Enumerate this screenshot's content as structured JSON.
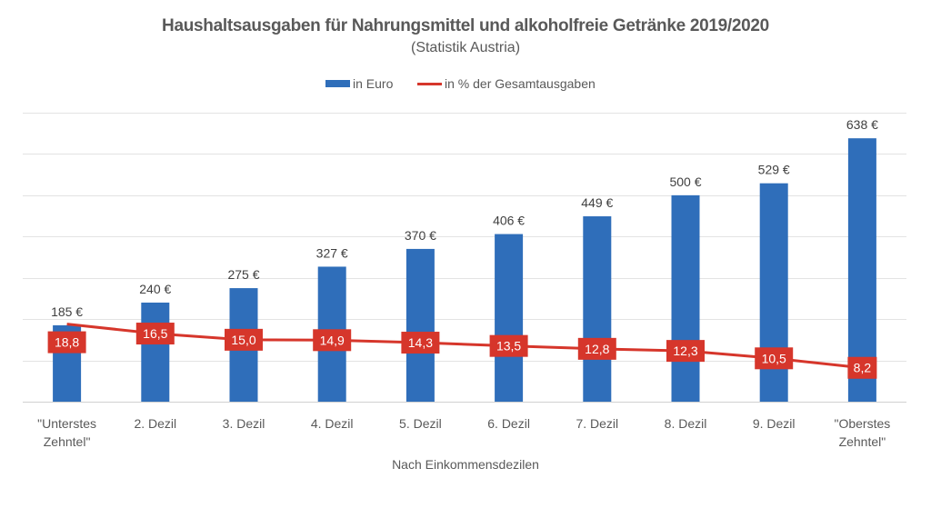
{
  "chart_data": {
    "type": "bar",
    "title": "Haushaltsausgaben für Nahrungsmittel und alkoholfreie Getränke 2019/2020",
    "subtitle": "(Statistik Austria)",
    "xlabel": "Nach Einkommensdezilen",
    "ylabel": "",
    "categories": [
      [
        "\"Unterstes",
        "Zehntel\""
      ],
      [
        "2. Dezil"
      ],
      [
        "3. Dezil"
      ],
      [
        "4. Dezil"
      ],
      [
        "5. Dezil"
      ],
      [
        "6. Dezil"
      ],
      [
        "7. Dezil"
      ],
      [
        "8. Dezil"
      ],
      [
        "9. Dezil"
      ],
      [
        "\"Oberstes",
        "Zehntel\""
      ]
    ],
    "series": [
      {
        "name": "in Euro",
        "type": "bar",
        "color": "#2F6EBA",
        "values": [
          185,
          240,
          275,
          327,
          370,
          406,
          449,
          500,
          529,
          638
        ],
        "labels": [
          "185 €",
          "240 €",
          "275 €",
          "327 €",
          "370 €",
          "406 €",
          "449 €",
          "500 €",
          "529 €",
          "638 €"
        ],
        "axis": "primary"
      },
      {
        "name": "in % der Gesamtausgaben",
        "type": "line",
        "color": "#D6362B",
        "values": [
          18.8,
          16.5,
          15.0,
          14.9,
          14.3,
          13.5,
          12.8,
          12.3,
          10.5,
          8.2
        ],
        "labels": [
          "18,8",
          "16,5",
          "15,0",
          "14,9",
          "14,3",
          "13,5",
          "12,8",
          "12,3",
          "10,5",
          "8,2"
        ],
        "axis": "secondary"
      }
    ],
    "ylim": [
      0,
      700
    ],
    "y_gridline_step": 100,
    "y2lim": [
      0,
      70
    ],
    "axis_tick_labels_visible": false,
    "grid": true,
    "legend": {
      "position": "top",
      "entries": [
        "in Euro",
        "in % der Gesamtausgaben"
      ]
    }
  }
}
